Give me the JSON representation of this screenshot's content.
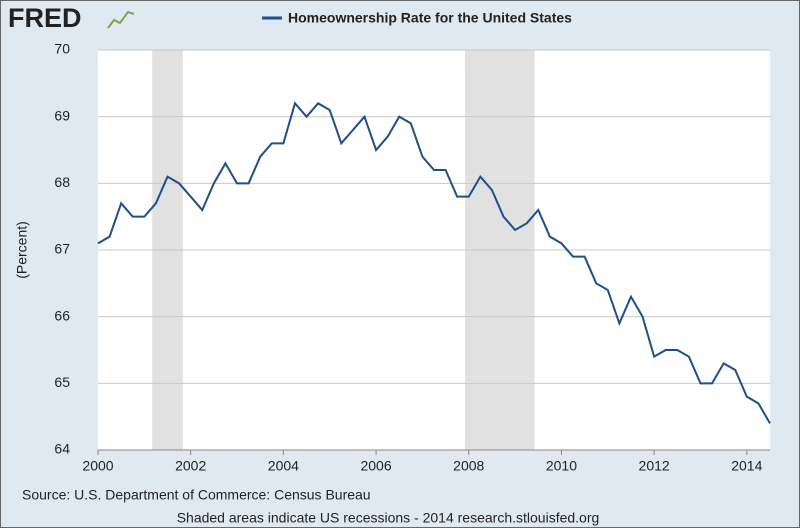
{
  "logo": "FRED",
  "chart_data": {
    "type": "line",
    "title": "Homeownership Rate for the United States",
    "ylabel": "(Percent)",
    "source": "Source: U.S. Department of Commerce: Census Bureau",
    "note": "Shaded areas indicate US recessions - 2014 research.stlouisfed.org",
    "x": [
      2000,
      2000.25,
      2000.5,
      2000.75,
      2001,
      2001.25,
      2001.5,
      2001.75,
      2002,
      2002.25,
      2002.5,
      2002.75,
      2003,
      2003.25,
      2003.5,
      2003.75,
      2004,
      2004.25,
      2004.5,
      2004.75,
      2005,
      2005.25,
      2005.5,
      2005.75,
      2006,
      2006.25,
      2006.5,
      2006.75,
      2007,
      2007.25,
      2007.5,
      2007.75,
      2008,
      2008.25,
      2008.5,
      2008.75,
      2009,
      2009.25,
      2009.5,
      2009.75,
      2010,
      2010.25,
      2010.5,
      2010.75,
      2011,
      2011.25,
      2011.5,
      2011.75,
      2012,
      2012.25,
      2012.5,
      2012.75,
      2013,
      2013.25,
      2013.5,
      2013.75,
      2014,
      2014.25,
      2014.5
    ],
    "series": [
      {
        "name": "Homeownership Rate for the United States",
        "color": "#1f4e8c",
        "values": [
          67.1,
          67.2,
          67.7,
          67.5,
          67.5,
          67.7,
          68.1,
          68.0,
          67.8,
          67.6,
          68.0,
          68.3,
          68.0,
          68.0,
          68.4,
          68.6,
          68.6,
          69.2,
          69.0,
          69.2,
          69.1,
          68.6,
          68.8,
          69.0,
          68.5,
          68.7,
          69.0,
          68.9,
          68.4,
          68.2,
          68.2,
          67.8,
          67.8,
          68.1,
          67.9,
          67.5,
          67.3,
          67.4,
          67.6,
          67.2,
          67.1,
          66.9,
          66.9,
          66.5,
          66.4,
          65.9,
          66.3,
          66.0,
          65.4,
          65.5,
          65.5,
          65.4,
          65.0,
          65.0,
          65.3,
          65.2,
          64.8,
          64.7,
          64.4
        ]
      }
    ],
    "recessions": [
      [
        2001.17,
        2001.83
      ],
      [
        2007.92,
        2009.42
      ]
    ],
    "recession_color": "#e1e1e1",
    "xlim": [
      2000,
      2014.5
    ],
    "xticks": [
      2000,
      2002,
      2004,
      2006,
      2008,
      2010,
      2012,
      2014
    ],
    "ylim": [
      64,
      70
    ],
    "yticks": [
      64,
      65,
      66,
      67,
      68,
      69,
      70
    ],
    "grid": true
  }
}
